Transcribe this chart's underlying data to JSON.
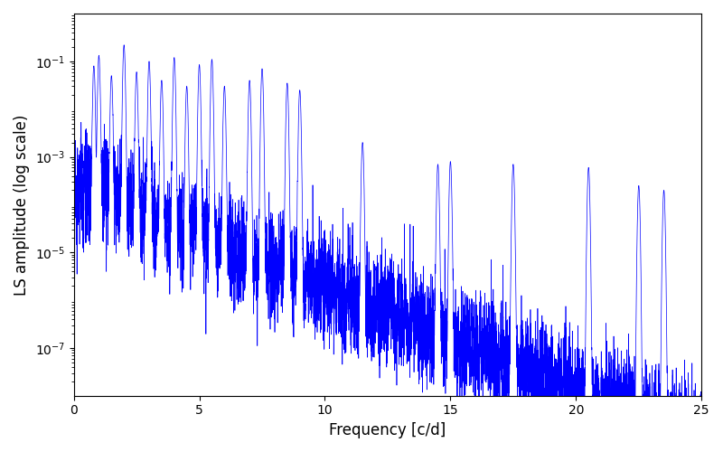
{
  "xlabel": "Frequency [c/d]",
  "ylabel": "LS amplitude (log scale)",
  "line_color": "#0000ff",
  "xlim": [
    0,
    25
  ],
  "ylim": [
    1e-08,
    1.0
  ],
  "yticks": [
    1e-07,
    1e-05,
    0.001,
    0.1
  ],
  "background_color": "#ffffff",
  "figsize": [
    8.0,
    5.0
  ],
  "dpi": 100,
  "seed": 12345,
  "n_points": 8000,
  "freq_max": 25.0,
  "base_log_amplitude": -3.5,
  "decay_rate": 0.22,
  "noise_sigma": 1.2,
  "peak_frequencies": [
    0.8,
    1.0,
    1.5,
    2.0,
    2.5,
    3.0,
    3.5,
    4.0,
    4.5,
    5.0,
    5.5,
    6.0,
    7.0,
    7.5,
    8.5,
    9.0,
    11.5,
    14.5,
    15.0,
    17.5,
    20.5,
    22.5,
    23.5
  ],
  "peak_amplitudes": [
    0.08,
    0.13,
    0.05,
    0.22,
    0.06,
    0.1,
    0.04,
    0.12,
    0.03,
    0.085,
    0.11,
    0.03,
    0.04,
    0.07,
    0.035,
    0.025,
    0.002,
    0.0007,
    0.0008,
    0.0007,
    0.0006,
    0.00025,
    0.0002
  ],
  "peak_widths": [
    0.03,
    0.03,
    0.03,
    0.03,
    0.03,
    0.03,
    0.03,
    0.03,
    0.03,
    0.03,
    0.03,
    0.03,
    0.03,
    0.03,
    0.03,
    0.03,
    0.03,
    0.03,
    0.03,
    0.03,
    0.03,
    0.03,
    0.03
  ]
}
